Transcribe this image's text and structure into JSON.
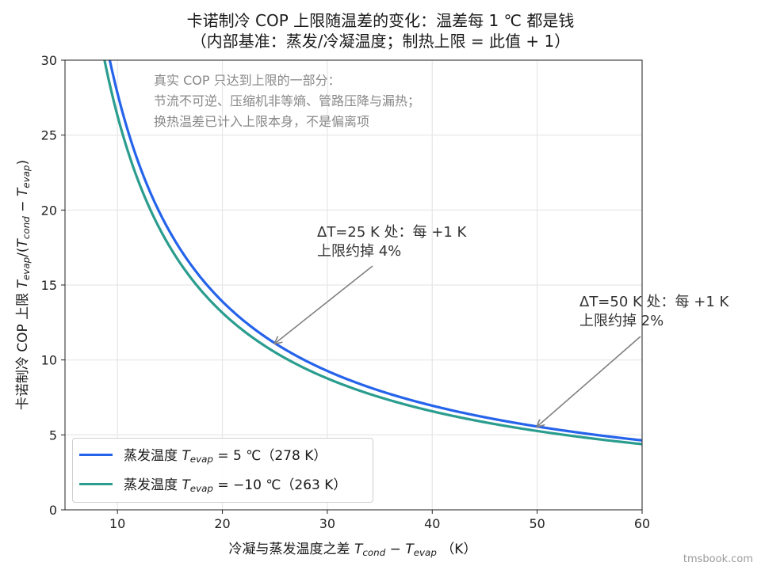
{
  "title": {
    "line1": "卡诺制冷 COP 上限随温差的变化：温差每 1 ℃ 都是钱",
    "line2": "（内部基准：蒸发/冷凝温度；制热上限 = 此值 + 1）"
  },
  "axes": {
    "y_label_prefix": "卡诺制冷 COP 上限",
    "x_label_prefix": "冷凝与蒸发温度之差",
    "x_label_unit": "（K）"
  },
  "note": [
    "真实 COP 只达到上限的一部分：",
    "节流不可逆、压缩机非等熵、管路压降与漏热；",
    "换热温差已计入上限本身，不是偏离项"
  ],
  "annotations": [
    {
      "line1": "ΔT=25 K 处：每 +1 K",
      "line2": "上限约掉 4%",
      "x": 25,
      "y": 11.1
    },
    {
      "line1": "ΔT=50 K 处：每 +1 K",
      "line2": "上限约掉 2%",
      "x": 50,
      "y": 5.56
    }
  ],
  "legend": [
    {
      "prefix": "蒸发温度",
      "suffix": " = 5 ℃（278 K）"
    },
    {
      "prefix": "蒸发温度",
      "suffix": " = −10 ℃（263 K）"
    }
  ],
  "watermark": "tmsbook.com",
  "colors": {
    "series1": "#2563eb",
    "series2": "#2a9d8f",
    "grid": "#e6e6e6",
    "arrow": "#808080"
  },
  "chart_data": {
    "type": "line",
    "x_formula": "ΔT in K",
    "xlim": [
      5,
      60
    ],
    "ylim": [
      0,
      30
    ],
    "xticks": [
      10,
      20,
      30,
      40,
      50,
      60
    ],
    "yticks": [
      0,
      5,
      10,
      15,
      20,
      25,
      30
    ],
    "grid": true,
    "legend_placement": "lower-left",
    "series": [
      {
        "name": "蒸发温度 T_evap = 5 ℃（278 K）",
        "t_evap_K": 278,
        "x": [
          9.27,
          10,
          12,
          15,
          20,
          25,
          30,
          35,
          40,
          45,
          50,
          55,
          60
        ],
        "y": [
          30.0,
          27.8,
          23.17,
          18.53,
          13.9,
          11.12,
          9.27,
          7.94,
          6.95,
          6.18,
          5.56,
          5.05,
          4.63
        ]
      },
      {
        "name": "蒸发温度 T_evap = −10 ℃（263 K）",
        "t_evap_K": 263,
        "x": [
          8.77,
          10,
          12,
          15,
          20,
          25,
          30,
          35,
          40,
          45,
          50,
          55,
          60
        ],
        "y": [
          30.0,
          26.3,
          21.92,
          17.53,
          13.15,
          10.52,
          8.77,
          7.51,
          6.58,
          5.84,
          5.26,
          4.78,
          4.38
        ]
      }
    ]
  }
}
